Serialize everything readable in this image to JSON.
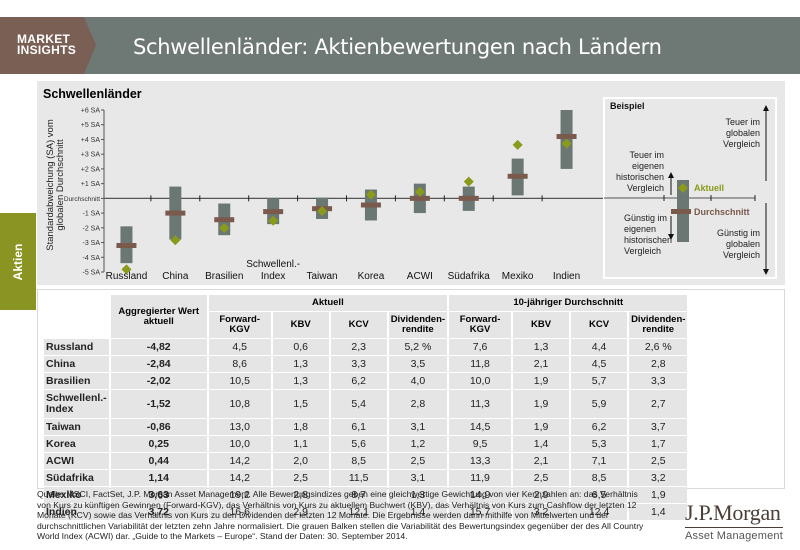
{
  "header": {
    "brand_line1": "MARKET",
    "brand_line2": "INSIGHTS",
    "title": "Schwellenländer: Aktienbewertungen nach Ländern",
    "brand_color": "#7a5f55",
    "bar_color": "#6e7874"
  },
  "side_tab": {
    "label": "Aktien",
    "color": "#8a9422"
  },
  "chart_data": {
    "type": "range-bar",
    "title": "Schwellenländer",
    "ylabel": "Standardabweichung (SA) vom globalen Durchschnitt",
    "xlabel": "",
    "ylim": [
      -5,
      6
    ],
    "yticks": [
      {
        "value": 6,
        "label": "+6 SA"
      },
      {
        "value": 5,
        "label": "+5 SA"
      },
      {
        "value": 4,
        "label": "+4 SA"
      },
      {
        "value": 3,
        "label": "+3 SA"
      },
      {
        "value": 2,
        "label": "+2 SA"
      },
      {
        "value": 1,
        "label": "+1 SA"
      },
      {
        "value": 0,
        "label": "Durchschnitt"
      },
      {
        "value": -1,
        "label": "-1 SA"
      },
      {
        "value": -2,
        "label": "-2 SA"
      },
      {
        "value": -3,
        "label": "-3 SA"
      },
      {
        "value": -4,
        "label": "-4 SA"
      },
      {
        "value": -5,
        "label": "-5 SA"
      }
    ],
    "categories": [
      "Russland",
      "China",
      "Brasilien",
      "Schwellenl.-\nIndex",
      "Taiwan",
      "Korea",
      "ACWI",
      "Südafrika",
      "Mexiko",
      "Indien"
    ],
    "series": [
      {
        "name": "Range low",
        "values": [
          -4.4,
          -2.8,
          -2.5,
          -1.75,
          -1.4,
          -1.5,
          -1.0,
          -0.85,
          0.2,
          2.0
        ]
      },
      {
        "name": "Range high",
        "values": [
          -1.9,
          0.8,
          -0.35,
          0.0,
          0.05,
          0.6,
          1.0,
          0.8,
          2.7,
          6.0
        ]
      },
      {
        "name": "Durchschnitt",
        "values": [
          -3.2,
          -1.0,
          -1.45,
          -0.9,
          -0.7,
          -0.45,
          0.0,
          0.0,
          1.5,
          4.2
        ]
      },
      {
        "name": "Aktuell",
        "values": [
          -4.82,
          -2.84,
          -2.02,
          -1.52,
          -0.86,
          0.25,
          0.44,
          1.14,
          3.63,
          3.72
        ]
      }
    ],
    "colors": {
      "bar": "#6b7773",
      "average": "#7a5a4d",
      "current": "#8a9a1a",
      "axis": "#555555"
    },
    "legend": {
      "title": "Beispiel",
      "placement": "right",
      "current_label": "Aktuell",
      "average_label": "Durchschnitt",
      "hist_expensive": [
        "Teuer im",
        "eigenen",
        "historischen",
        "Vergleich"
      ],
      "hist_cheap": [
        "Günstig im",
        "eigenen",
        "historischen",
        "Vergleich"
      ],
      "global_expensive": [
        "Teuer im",
        "globalen",
        "Vergleich"
      ],
      "global_cheap": [
        "Günstig im",
        "globalen",
        "Vergleich"
      ]
    }
  },
  "table": {
    "group_headers": {
      "aggregated": "Aggregierter Wert aktuell",
      "current": "Aktuell",
      "ten_year": "10-jähriger Durchschnitt"
    },
    "columns": [
      "Forward-KGV",
      "KBV",
      "KCV",
      "Dividenden-\nrendite",
      "Forward-KGV",
      "KBV",
      "KCV",
      "Dividenden-\nrendite"
    ],
    "rows": [
      {
        "label": "Russland",
        "agg": "-4,82",
        "values": [
          "4,5",
          "0,6",
          "2,3",
          "5,2 %",
          "7,6",
          "1,3",
          "4,4",
          "2,6 %"
        ]
      },
      {
        "label": "China",
        "agg": "-2,84",
        "values": [
          "8,6",
          "1,3",
          "3,3",
          "3,5",
          "11,8",
          "2,1",
          "4,5",
          "2,8"
        ]
      },
      {
        "label": "Brasilien",
        "agg": "-2,02",
        "values": [
          "10,5",
          "1,3",
          "6,2",
          "4,0",
          "10,0",
          "1,9",
          "5,7",
          "3,3"
        ]
      },
      {
        "label": "Schwellenl.-\nIndex",
        "agg": "-1,52",
        "values": [
          "10,8",
          "1,5",
          "5,4",
          "2,8",
          "11,3",
          "1,9",
          "5,9",
          "2,7"
        ]
      },
      {
        "label": "Taiwan",
        "agg": "-0,86",
        "values": [
          "13,0",
          "1,8",
          "6,1",
          "3,1",
          "14,5",
          "1,9",
          "6,2",
          "3,7"
        ]
      },
      {
        "label": "Korea",
        "agg": "0,25",
        "values": [
          "10,0",
          "1,1",
          "5,6",
          "1,2",
          "9,5",
          "1,4",
          "5,3",
          "1,7"
        ]
      },
      {
        "label": "ACWI",
        "agg": "0,44",
        "values": [
          "14,2",
          "2,0",
          "8,5",
          "2,5",
          "13,3",
          "2,1",
          "7,1",
          "2,5"
        ]
      },
      {
        "label": "Südafrika",
        "agg": "1,14",
        "values": [
          "14,2",
          "2,5",
          "11,5",
          "3,1",
          "11,9",
          "2,5",
          "8,5",
          "3,2"
        ]
      },
      {
        "label": "Mexiko",
        "agg": "3,63",
        "values": [
          "19,2",
          "2,8",
          "8,7",
          "1,3",
          "14,9",
          "2,9",
          "6,5",
          "1,9"
        ]
      },
      {
        "label": "Indien",
        "agg": "3,72",
        "values": [
          "16,6",
          "2,9",
          "12,1",
          "1,4",
          "15,7",
          "3,2",
          "12,4",
          "1,4"
        ]
      }
    ]
  },
  "footnote": "Quelle: MSCI, FactSet, J.P. Morgan Asset Management. Alle Bewertungsindizes geben eine gleichwertige Gewichtung von vier Kennzahlen an: das Verhältnis von Kurs zu künftigen Gewinnen (Forward-KGV), das Verhältnis von Kurs zu aktuellem Buchwert (KBV), das Verhältnis von Kurs zum Cashflow der letzten 12 Monate (KCV) sowie das Verhältnis von Kurs zu den Dividenden der letzten 12 Monate. Die Ergebnisse werden dann mithilfe von Mittelwerten und der durchschnittlichen Variabilität der letzten zehn Jahre normalisiert. Die grauen Balken stellen die Variabilität des Bewertungsindex gegenüber der des All Country World Index (ACWI) dar. „Guide to the Markets – Europe“. Stand der Daten: 30. September 2014.",
  "logo": {
    "name": "J.P.Morgan",
    "subtitle": "Asset Management"
  }
}
